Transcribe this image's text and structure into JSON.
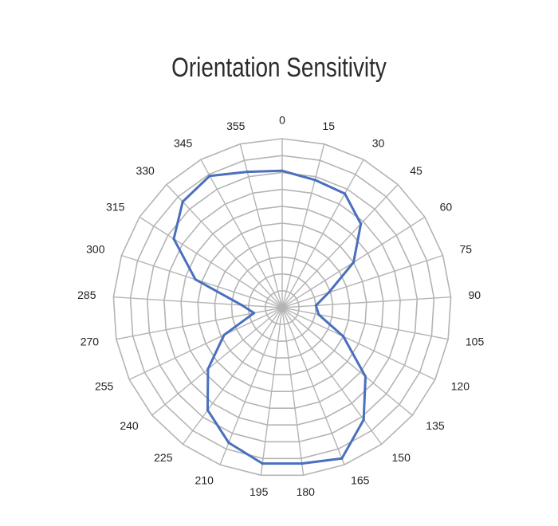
{
  "chart_data": {
    "type": "radar",
    "title": "Orientation Sensitivity",
    "angles": [
      0,
      15,
      30,
      45,
      60,
      75,
      90,
      105,
      120,
      135,
      150,
      165,
      180,
      195,
      210,
      225,
      240,
      255,
      270,
      285,
      300,
      315,
      330,
      345,
      355
    ],
    "tick_labels": [
      "0",
      "15",
      "30",
      "45",
      "60",
      "75",
      "90",
      "105",
      "120",
      "135",
      "150",
      "165",
      "180",
      "195",
      "210",
      "225",
      "240",
      "255",
      "270",
      "285",
      "300",
      "315",
      "330",
      "345",
      "355"
    ],
    "rings": 10,
    "grid": true,
    "colors": {
      "series": "#4a6fbd",
      "grid": "#b4b4b4"
    },
    "series": [
      {
        "values": [
          8.1,
          7.8,
          7.7,
          6.8,
          5.0,
          2.9,
          2.0,
          2.2,
          4.0,
          6.4,
          8.2,
          9.6,
          9.3,
          9.3,
          8.6,
          7.5,
          5.7,
          3.8,
          1.7,
          2.4,
          5.4,
          7.6,
          8.6,
          8.9,
          8.3
        ]
      }
    ]
  }
}
